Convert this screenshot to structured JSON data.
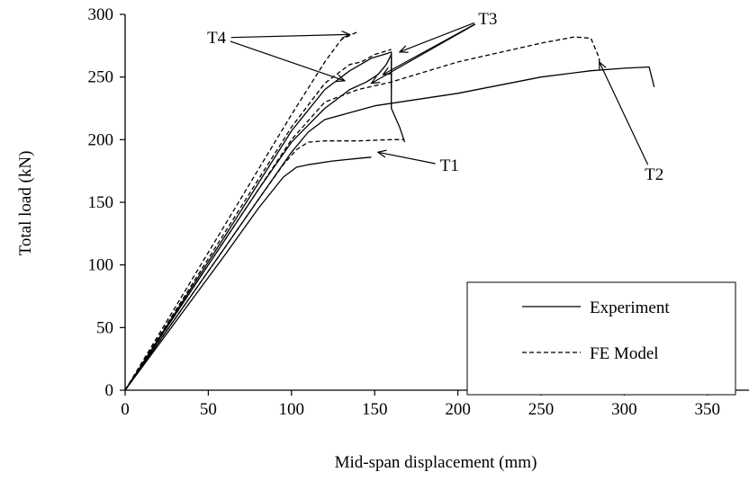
{
  "chart_data": {
    "type": "line",
    "xlabel": "Mid-span displacement (mm)",
    "ylabel": "Total load (kN)",
    "xlim": [
      0,
      375
    ],
    "ylim": [
      0,
      300
    ],
    "x_ticks": [
      0,
      50,
      100,
      150,
      200,
      250,
      300,
      350
    ],
    "y_ticks": [
      0,
      50,
      100,
      150,
      200,
      250,
      300
    ],
    "grid": false,
    "legend_position": "bottom-right",
    "legend": [
      {
        "label": "Experiment",
        "style": "solid"
      },
      {
        "label": "FE Model",
        "style": "dashed"
      }
    ],
    "series": [
      {
        "name": "T1",
        "style": "solid",
        "x": [
          0,
          20,
          40,
          60,
          80,
          95,
          103,
          110,
          125,
          140,
          148
        ],
        "y": [
          0,
          36,
          72,
          108,
          145,
          170,
          178,
          180,
          183,
          185,
          186
        ]
      },
      {
        "name": "T2",
        "style": "solid",
        "x": [
          0,
          20,
          40,
          60,
          80,
          100,
          110,
          120,
          150,
          200,
          250,
          280,
          300,
          315,
          318
        ],
        "y": [
          0,
          38,
          76,
          114,
          152,
          190,
          206,
          216,
          227,
          237,
          250,
          255,
          257,
          258,
          242
        ]
      },
      {
        "name": "T3",
        "style": "solid",
        "x": [
          0,
          20,
          40,
          60,
          80,
          100,
          120,
          135,
          145,
          152,
          157,
          160,
          160,
          165,
          168
        ],
        "y": [
          0,
          40,
          80,
          120,
          160,
          198,
          225,
          240,
          246,
          252,
          260,
          268,
          225,
          210,
          198
        ]
      },
      {
        "name": "T4",
        "style": "solid",
        "x": [
          0,
          20,
          40,
          60,
          80,
          100,
          120,
          135,
          148,
          158,
          160,
          160
        ],
        "y": [
          0,
          41,
          82,
          123,
          165,
          207,
          240,
          255,
          265,
          269,
          270,
          240
        ]
      },
      {
        "name": "T1",
        "style": "dashed",
        "x": [
          0,
          20,
          40,
          60,
          80,
          95,
          103,
          110,
          120,
          140,
          160,
          168
        ],
        "y": [
          0,
          38,
          76,
          114,
          152,
          180,
          192,
          198,
          199,
          199,
          200,
          200
        ]
      },
      {
        "name": "T2",
        "style": "dashed",
        "x": [
          0,
          20,
          40,
          60,
          80,
          100,
          120,
          140,
          160,
          200,
          250,
          270,
          280,
          285,
          285
        ],
        "y": [
          0,
          40,
          80,
          120,
          160,
          200,
          230,
          240,
          246,
          262,
          277,
          282,
          281,
          265,
          260
        ]
      },
      {
        "name": "T3",
        "style": "dashed",
        "x": [
          0,
          20,
          40,
          60,
          80,
          100,
          120,
          135,
          142,
          150,
          160
        ],
        "y": [
          0,
          42,
          84,
          126,
          168,
          210,
          245,
          260,
          262,
          268,
          272
        ]
      },
      {
        "name": "T4",
        "style": "dashed",
        "x": [
          0,
          20,
          40,
          60,
          80,
          100,
          120,
          130,
          138,
          140
        ],
        "y": [
          0,
          44,
          88,
          132,
          176,
          220,
          262,
          280,
          285,
          286
        ]
      }
    ],
    "annotations": [
      {
        "text": "T1",
        "label_at": [
          195,
          175
        ],
        "arrows_to": [
          [
            152,
            190
          ]
        ]
      },
      {
        "text": "T2",
        "label_at": [
          318,
          168
        ],
        "arrows_to": [
          [
            285,
            262
          ]
        ]
      },
      {
        "text": "T3",
        "label_at": [
          218,
          292
        ],
        "arrows_to": [
          [
            165,
            270
          ],
          [
            155,
            252
          ],
          [
            148,
            245
          ]
        ]
      },
      {
        "text": "T4",
        "label_at": [
          55,
          277
        ],
        "arrows_to": [
          [
            135,
            284
          ],
          [
            132,
            247
          ]
        ]
      }
    ]
  }
}
